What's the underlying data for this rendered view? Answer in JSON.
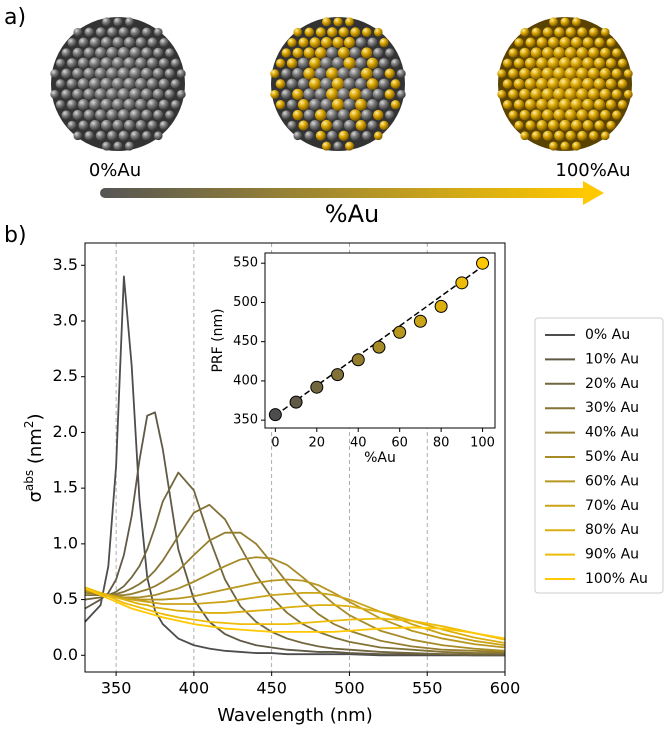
{
  "panel_a": {
    "label": "a)",
    "left_label": "0%Au",
    "right_label": "100%Au",
    "arrow_label": "%Au"
  },
  "panel_b_label": "b)",
  "chart_data": [
    {
      "type": "line",
      "xlabel": "Wavelength (nm)",
      "ylabel": [
        {
          "text": "σ"
        },
        {
          "text": "abs",
          "sup": true
        },
        {
          "text": " (nm"
        },
        {
          "text": "2",
          "sup": true
        },
        {
          "text": ")"
        }
      ],
      "xlim": [
        330,
        600
      ],
      "ylim": [
        -0.15,
        3.7
      ],
      "xticks": [
        350,
        400,
        450,
        500,
        550,
        600
      ],
      "yticks": [
        {
          "value": 0,
          "label": "0.0"
        },
        0.5,
        {
          "value": 1,
          "label": "1.0"
        },
        1.5,
        {
          "value": 2,
          "label": "2.0"
        },
        2.5,
        {
          "value": 3,
          "label": "3.0"
        },
        3.5
      ],
      "grid": "x",
      "x": [
        330,
        340,
        345,
        350,
        355,
        360,
        365,
        370,
        375,
        380,
        390,
        400,
        410,
        420,
        430,
        440,
        450,
        460,
        470,
        480,
        490,
        500,
        520,
        540,
        560,
        580,
        600
      ],
      "series": [
        {
          "name": "0% Au",
          "color": "#4d4d4d",
          "values": [
            0.3,
            0.45,
            0.8,
            1.7,
            3.4,
            2.6,
            1.4,
            0.7,
            0.4,
            0.28,
            0.15,
            0.09,
            0.06,
            0.04,
            0.03,
            0.02,
            0.02,
            0.01,
            0.01,
            0.01,
            0.01,
            0.01,
            0,
            0,
            0,
            0,
            0
          ]
        },
        {
          "name": "10% Au",
          "color": "#5f5945",
          "values": [
            0.42,
            0.5,
            0.56,
            0.68,
            0.9,
            1.25,
            1.75,
            2.15,
            2.18,
            1.85,
            0.95,
            0.5,
            0.3,
            0.19,
            0.13,
            0.09,
            0.07,
            0.05,
            0.04,
            0.03,
            0.03,
            0.02,
            0.01,
            0.01,
            0.01,
            0,
            0
          ]
        },
        {
          "name": "20% Au",
          "color": "#71663e",
          "values": [
            0.5,
            0.52,
            0.54,
            0.57,
            0.62,
            0.7,
            0.8,
            0.95,
            1.15,
            1.38,
            1.64,
            1.48,
            1.05,
            0.68,
            0.44,
            0.3,
            0.21,
            0.15,
            0.11,
            0.08,
            0.06,
            0.05,
            0.03,
            0.02,
            0.01,
            0.01,
            0.01
          ]
        },
        {
          "name": "30% Au",
          "color": "#827236",
          "values": [
            0.54,
            0.54,
            0.54,
            0.55,
            0.57,
            0.6,
            0.64,
            0.69,
            0.76,
            0.85,
            1.07,
            1.28,
            1.35,
            1.22,
            0.97,
            0.72,
            0.52,
            0.38,
            0.28,
            0.21,
            0.16,
            0.12,
            0.07,
            0.05,
            0.03,
            0.02,
            0.02
          ]
        },
        {
          "name": "40% Au",
          "color": "#947e2e",
          "values": [
            0.56,
            0.55,
            0.54,
            0.54,
            0.54,
            0.55,
            0.57,
            0.59,
            0.62,
            0.66,
            0.76,
            0.9,
            1.03,
            1.1,
            1.1,
            1.0,
            0.83,
            0.65,
            0.49,
            0.37,
            0.28,
            0.22,
            0.13,
            0.08,
            0.05,
            0.04,
            0.03
          ]
        },
        {
          "name": "50% Au",
          "color": "#a68b27",
          "values": [
            0.57,
            0.55,
            0.54,
            0.53,
            0.52,
            0.52,
            0.52,
            0.53,
            0.54,
            0.56,
            0.6,
            0.66,
            0.73,
            0.8,
            0.86,
            0.88,
            0.87,
            0.81,
            0.7,
            0.58,
            0.46,
            0.36,
            0.22,
            0.14,
            0.09,
            0.06,
            0.04
          ]
        },
        {
          "name": "60% Au",
          "color": "#b8971f",
          "values": [
            0.58,
            0.56,
            0.54,
            0.53,
            0.52,
            0.51,
            0.5,
            0.5,
            0.5,
            0.5,
            0.51,
            0.53,
            0.56,
            0.59,
            0.62,
            0.65,
            0.67,
            0.68,
            0.67,
            0.63,
            0.56,
            0.48,
            0.33,
            0.22,
            0.15,
            0.1,
            0.07
          ]
        },
        {
          "name": "70% Au",
          "color": "#caa317",
          "values": [
            0.59,
            0.56,
            0.54,
            0.52,
            0.51,
            0.5,
            0.49,
            0.48,
            0.47,
            0.46,
            0.46,
            0.46,
            0.47,
            0.48,
            0.5,
            0.52,
            0.54,
            0.55,
            0.56,
            0.56,
            0.54,
            0.5,
            0.39,
            0.28,
            0.19,
            0.13,
            0.09
          ]
        },
        {
          "name": "80% Au",
          "color": "#dbaf0f",
          "values": [
            0.6,
            0.56,
            0.54,
            0.52,
            0.5,
            0.48,
            0.46,
            0.45,
            0.43,
            0.42,
            0.4,
            0.39,
            0.38,
            0.38,
            0.39,
            0.4,
            0.41,
            0.43,
            0.44,
            0.45,
            0.45,
            0.44,
            0.39,
            0.31,
            0.23,
            0.16,
            0.11
          ]
        },
        {
          "name": "90% Au",
          "color": "#edbc08",
          "values": [
            0.61,
            0.56,
            0.53,
            0.5,
            0.47,
            0.45,
            0.43,
            0.41,
            0.39,
            0.37,
            0.34,
            0.32,
            0.3,
            0.29,
            0.28,
            0.28,
            0.28,
            0.28,
            0.29,
            0.3,
            0.31,
            0.32,
            0.33,
            0.31,
            0.26,
            0.2,
            0.14
          ]
        },
        {
          "name": "100% Au",
          "color": "#ffc800",
          "values": [
            0.6,
            0.54,
            0.51,
            0.48,
            0.45,
            0.42,
            0.4,
            0.38,
            0.36,
            0.34,
            0.31,
            0.28,
            0.26,
            0.24,
            0.23,
            0.22,
            0.21,
            0.21,
            0.21,
            0.21,
            0.21,
            0.22,
            0.24,
            0.25,
            0.24,
            0.2,
            0.15
          ]
        }
      ]
    },
    {
      "type": "scatter",
      "xlabel": "%Au",
      "ylabel": "PRF (nm)",
      "xlim": [
        -5,
        106
      ],
      "ylim": [
        340,
        563
      ],
      "xticks": [
        0,
        20,
        40,
        60,
        80,
        100
      ],
      "yticks": [
        350,
        400,
        450,
        500,
        550
      ],
      "x": [
        0,
        10,
        20,
        30,
        40,
        50,
        60,
        70,
        80,
        90,
        100
      ],
      "values": [
        357,
        373,
        392,
        408,
        427,
        443,
        462,
        476,
        495,
        525,
        550
      ],
      "colors": [
        "#4d4d4d",
        "#5f5945",
        "#71663e",
        "#827236",
        "#947e2e",
        "#a68b27",
        "#b8971f",
        "#caa317",
        "#dbaf0f",
        "#edbc08",
        "#ffc800"
      ],
      "fit": {
        "x": [
          0,
          100
        ],
        "values": [
          356,
          546
        ]
      }
    }
  ]
}
